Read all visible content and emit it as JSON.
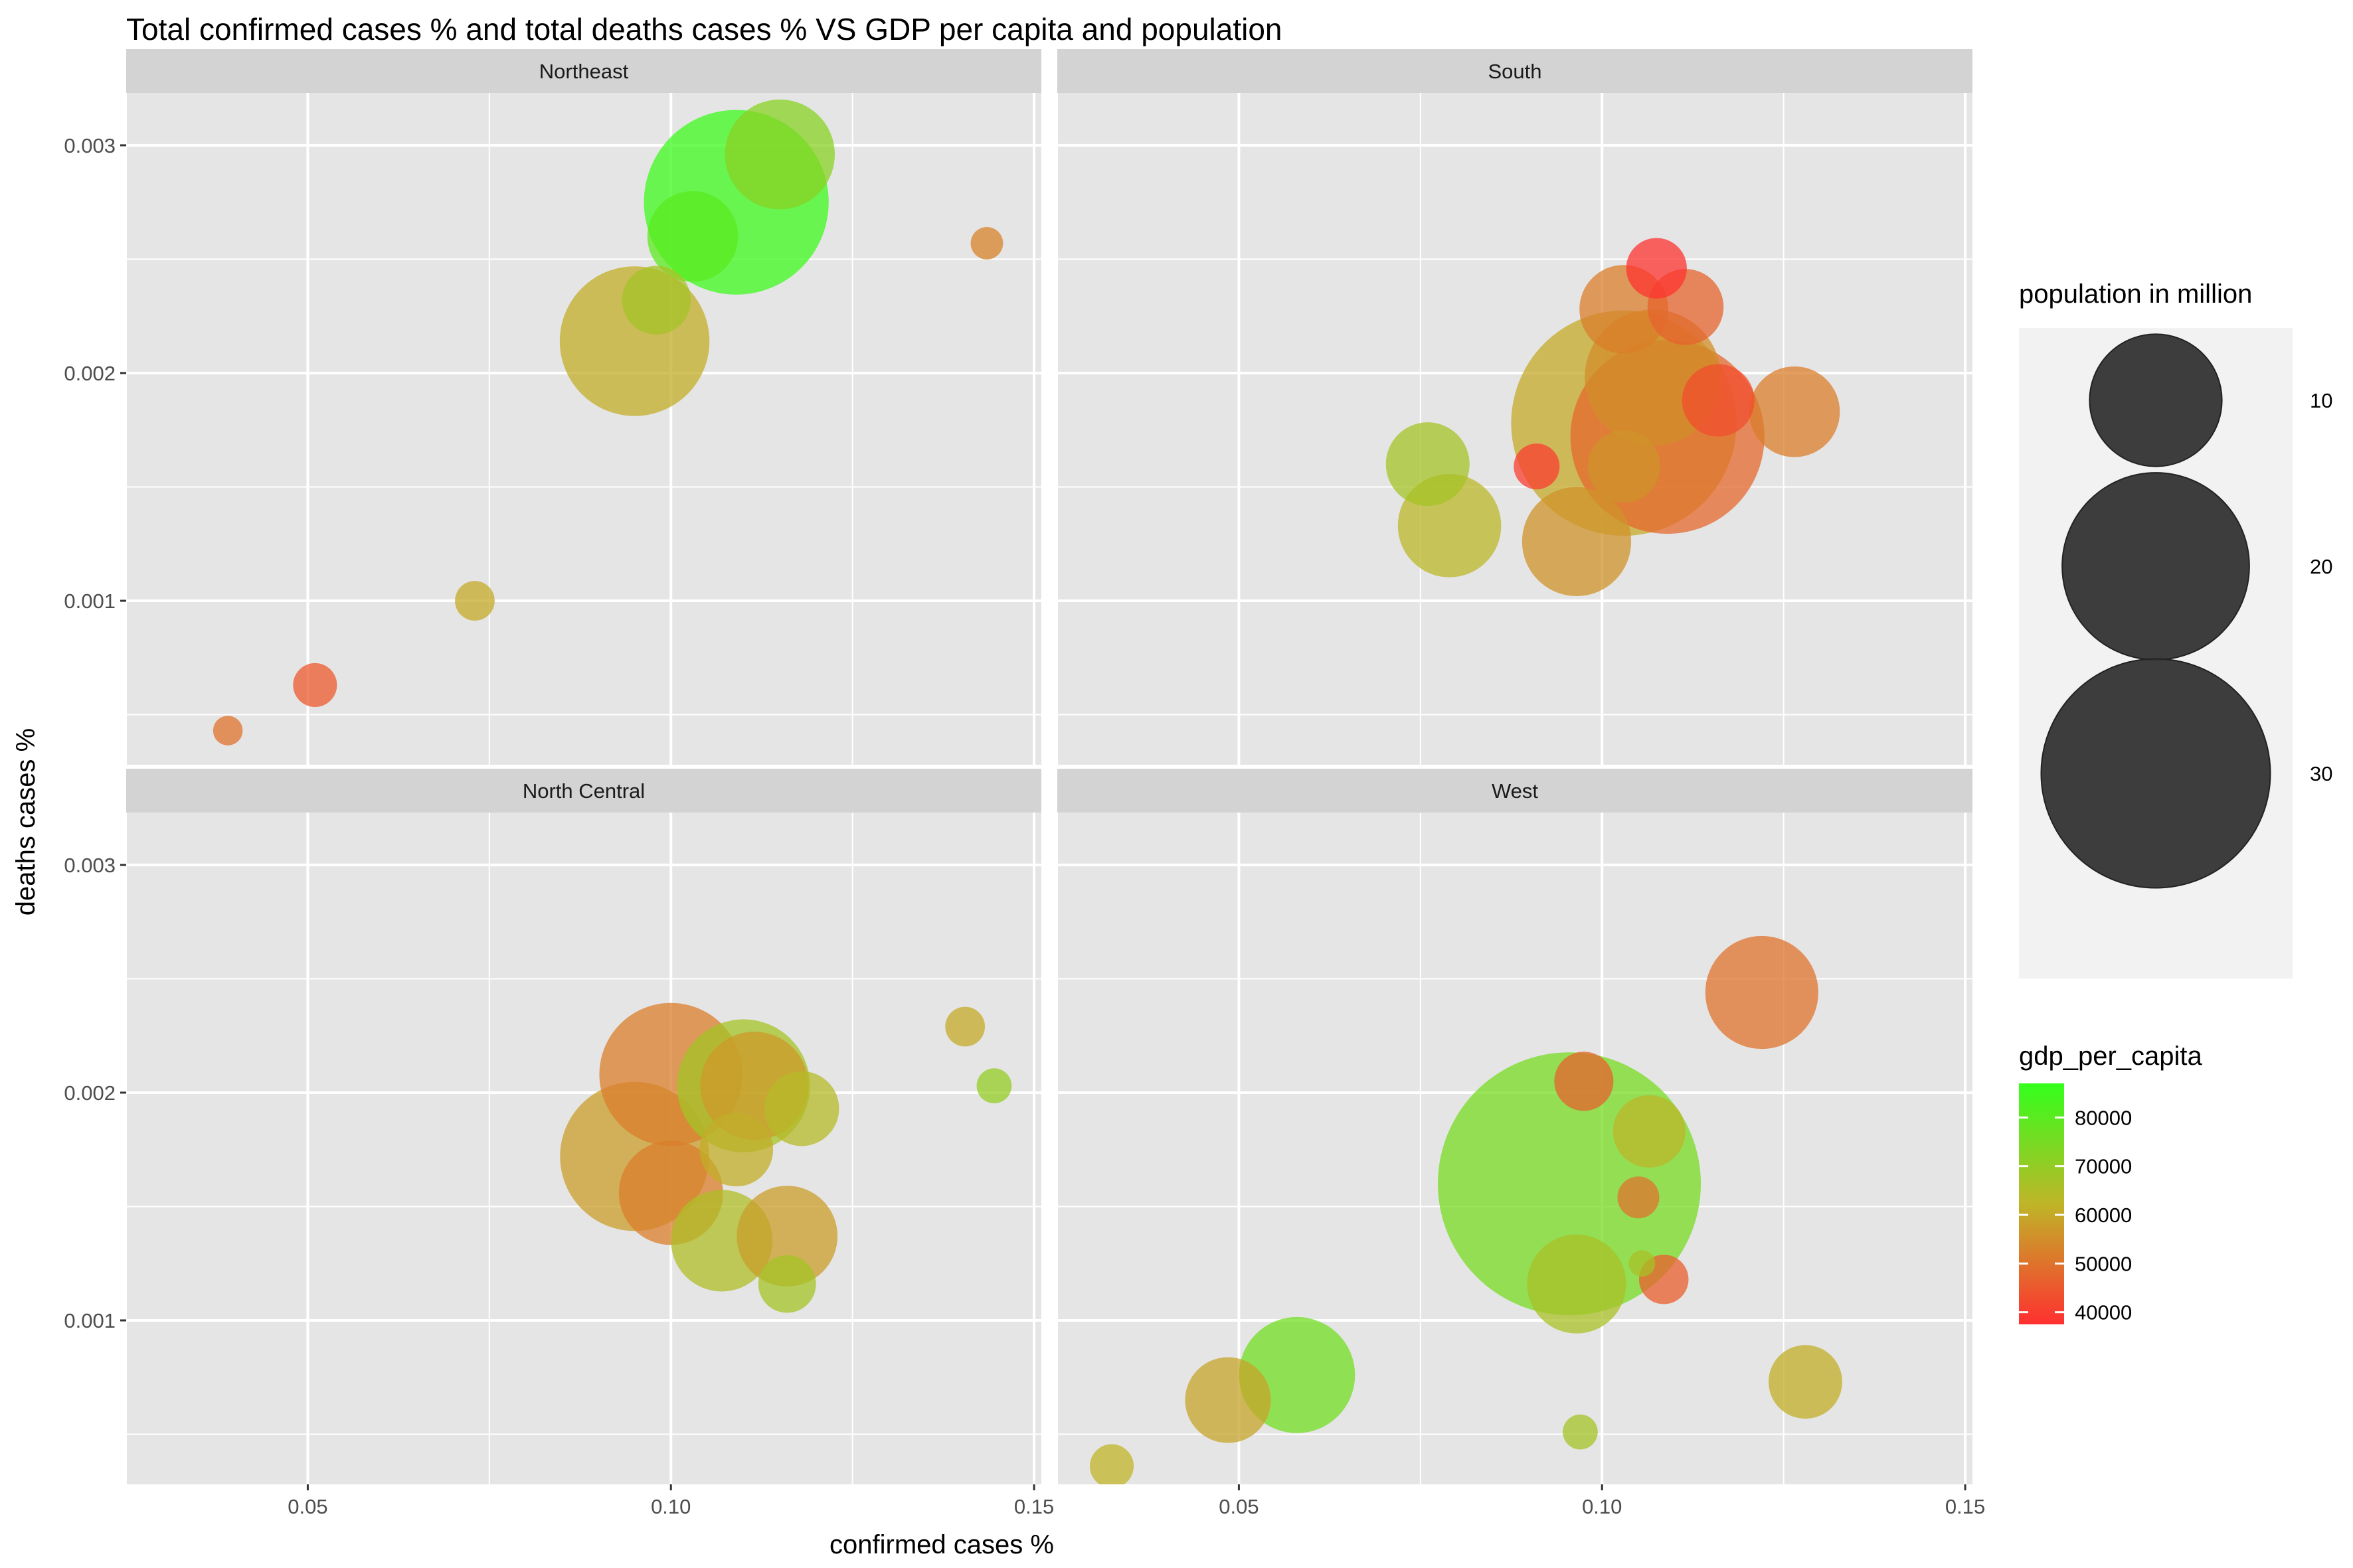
{
  "chart_data": {
    "type": "scatter",
    "title": "Total confirmed cases % and total deaths cases % VS GDP per capita and population",
    "xlabel": "confirmed cases %",
    "ylabel": "deaths cases %",
    "xlim": [
      0.025,
      0.151
    ],
    "ylim": [
      0.00028,
      0.00323
    ],
    "x_ticks": [
      {
        "value": 0.05,
        "label": "0.05"
      },
      {
        "value": 0.1,
        "label": "0.10"
      },
      {
        "value": 0.15,
        "label": "0.15"
      }
    ],
    "y_ticks": [
      {
        "value": 0.001,
        "label": "0.001"
      },
      {
        "value": 0.002,
        "label": "0.002"
      },
      {
        "value": 0.003,
        "label": "0.003"
      }
    ],
    "grid": true,
    "legend_position": "right",
    "colors": {
      "panel_bg": "#e5e5e5",
      "strip_bg": "#d3d3d3",
      "grid": "#ffffff",
      "low": "#ff3030",
      "mid": "#bfb528",
      "high": "#33ff1c"
    },
    "size_legend": {
      "title": "population in million",
      "breaks": [
        {
          "value": 10,
          "label": "10"
        },
        {
          "value": 20,
          "label": "20"
        },
        {
          "value": 30,
          "label": "30"
        }
      ]
    },
    "color_legend": {
      "title": "gdp_per_capita",
      "range": [
        37500,
        87000
      ],
      "breaks": [
        {
          "value": 80000,
          "label": "80000"
        },
        {
          "value": 70000,
          "label": "70000"
        },
        {
          "value": 60000,
          "label": "60000"
        },
        {
          "value": 50000,
          "label": "50000"
        },
        {
          "value": 40000,
          "label": "40000"
        }
      ]
    },
    "facets": [
      {
        "name": "Northeast",
        "points": [
          {
            "x": 0.109,
            "y": 0.00275,
            "pop": 19.5,
            "gdp": 85000
          },
          {
            "x": 0.115,
            "y": 0.00296,
            "pop": 6.9,
            "gdp": 72000
          },
          {
            "x": 0.103,
            "y": 0.0026,
            "pop": 4.7,
            "gdp": 80000
          },
          {
            "x": 0.098,
            "y": 0.00232,
            "pop": 2.7,
            "gdp": 67000
          },
          {
            "x": 0.095,
            "y": 0.00214,
            "pop": 12.8,
            "gdp": 61000
          },
          {
            "x": 0.1435,
            "y": 0.00257,
            "pop": 0.6,
            "gdp": 53000
          },
          {
            "x": 0.073,
            "y": 0.001,
            "pop": 0.9,
            "gdp": 60000
          },
          {
            "x": 0.051,
            "y": 0.00063,
            "pop": 1.1,
            "gdp": 45000
          },
          {
            "x": 0.039,
            "y": 0.00043,
            "pop": 0.5,
            "gdp": 50000
          }
        ]
      },
      {
        "name": "South",
        "points": [
          {
            "x": 0.103,
            "y": 0.00178,
            "pop": 29.0,
            "gdp": 60000
          },
          {
            "x": 0.109,
            "y": 0.00172,
            "pop": 21.5,
            "gdp": 48000
          },
          {
            "x": 0.107,
            "y": 0.00198,
            "pop": 10.6,
            "gdp": 55000
          },
          {
            "x": 0.116,
            "y": 0.00188,
            "pop": 3.0,
            "gdp": 43000
          },
          {
            "x": 0.1265,
            "y": 0.00183,
            "pop": 4.7,
            "gdp": 52000
          },
          {
            "x": 0.0965,
            "y": 0.00126,
            "pop": 6.8,
            "gdp": 56000
          },
          {
            "x": 0.079,
            "y": 0.00133,
            "pop": 6.1,
            "gdp": 63000
          },
          {
            "x": 0.076,
            "y": 0.0016,
            "pop": 4.0,
            "gdp": 67000
          },
          {
            "x": 0.103,
            "y": 0.00228,
            "pop": 4.5,
            "gdp": 52000
          },
          {
            "x": 0.1115,
            "y": 0.00229,
            "pop": 3.3,
            "gdp": 47000
          },
          {
            "x": 0.1075,
            "y": 0.00246,
            "pop": 2.1,
            "gdp": 38000
          },
          {
            "x": 0.103,
            "y": 0.00159,
            "pop": 3.0,
            "gdp": 56000
          },
          {
            "x": 0.091,
            "y": 0.00159,
            "pop": 1.2,
            "gdp": 40000
          }
        ]
      },
      {
        "name": "North Central",
        "points": [
          {
            "x": 0.095,
            "y": 0.00172,
            "pop": 12.7,
            "gdp": 58000
          },
          {
            "x": 0.1,
            "y": 0.00208,
            "pop": 11.7,
            "gdp": 52000
          },
          {
            "x": 0.11,
            "y": 0.00203,
            "pop": 10.1,
            "gdp": 67000
          },
          {
            "x": 0.1115,
            "y": 0.00203,
            "pop": 6.7,
            "gdp": 57000
          },
          {
            "x": 0.1,
            "y": 0.00156,
            "pop": 6.2,
            "gdp": 52000
          },
          {
            "x": 0.107,
            "y": 0.00135,
            "pop": 5.9,
            "gdp": 65000
          },
          {
            "x": 0.116,
            "y": 0.00137,
            "pop": 5.8,
            "gdp": 58000
          },
          {
            "x": 0.118,
            "y": 0.00193,
            "pop": 3.2,
            "gdp": 64000
          },
          {
            "x": 0.109,
            "y": 0.00175,
            "pop": 3.1,
            "gdp": 61000
          },
          {
            "x": 0.116,
            "y": 0.00116,
            "pop": 1.9,
            "gdp": 67000
          },
          {
            "x": 0.1405,
            "y": 0.00229,
            "pop": 0.9,
            "gdp": 60000
          },
          {
            "x": 0.1445,
            "y": 0.00203,
            "pop": 0.7,
            "gdp": 70000
          }
        ]
      },
      {
        "name": "West",
        "points": [
          {
            "x": 0.0955,
            "y": 0.0016,
            "pop": 39.5,
            "gdp": 75000
          },
          {
            "x": 0.122,
            "y": 0.00244,
            "pop": 7.3,
            "gdp": 50000
          },
          {
            "x": 0.0965,
            "y": 0.00116,
            "pop": 5.6,
            "gdp": 66000
          },
          {
            "x": 0.058,
            "y": 0.00076,
            "pop": 7.7,
            "gdp": 76000
          },
          {
            "x": 0.0485,
            "y": 0.00065,
            "pop": 4.2,
            "gdp": 59000
          },
          {
            "x": 0.128,
            "y": 0.00073,
            "pop": 3.1,
            "gdp": 61000
          },
          {
            "x": 0.1065,
            "y": 0.00183,
            "pop": 3.0,
            "gdp": 63000
          },
          {
            "x": 0.0975,
            "y": 0.00205,
            "pop": 2.0,
            "gdp": 47000
          },
          {
            "x": 0.105,
            "y": 0.00154,
            "pop": 1.0,
            "gdp": 50000
          },
          {
            "x": 0.1085,
            "y": 0.00118,
            "pop": 1.4,
            "gdp": 46000
          },
          {
            "x": 0.1055,
            "y": 0.00125,
            "pop": 0.4,
            "gdp": 66000
          },
          {
            "x": 0.097,
            "y": 0.00051,
            "pop": 0.7,
            "gdp": 67000
          },
          {
            "x": 0.0325,
            "y": 0.00036,
            "pop": 1.1,
            "gdp": 62000
          }
        ]
      }
    ]
  }
}
